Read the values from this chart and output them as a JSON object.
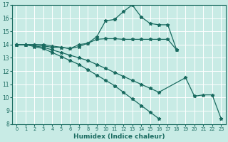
{
  "xlabel": "Humidex (Indice chaleur)",
  "bg_color": "#c8ebe5",
  "line_color": "#1a6b60",
  "xmin": -0.5,
  "xmax": 23.5,
  "ymin": 8,
  "ymax": 17,
  "line1_x": [
    0,
    1,
    2,
    3,
    4,
    5,
    6,
    7,
    8,
    9,
    10,
    11,
    12,
    13,
    14,
    15,
    16,
    17,
    18
  ],
  "line1_y": [
    14,
    14,
    14,
    14,
    13.9,
    13.8,
    13.7,
    14.0,
    14.1,
    14.4,
    14.45,
    14.45,
    14.4,
    14.4,
    14.4,
    14.4,
    14.4,
    14.4,
    13.6
  ],
  "line2_x": [
    0,
    1,
    2,
    3,
    4,
    5,
    6,
    7,
    8,
    9,
    10,
    11,
    12,
    13,
    14,
    15,
    16,
    17,
    18
  ],
  "line2_y": [
    14,
    14,
    14,
    13.9,
    13.8,
    13.8,
    13.7,
    13.85,
    14.1,
    14.6,
    15.8,
    15.9,
    16.5,
    17.0,
    16.1,
    15.6,
    15.5,
    15.5,
    13.6
  ],
  "line3_x": [
    0,
    1,
    2,
    3,
    4,
    5,
    6,
    7,
    8,
    9,
    10,
    11,
    12,
    13,
    14,
    15,
    16,
    19,
    20,
    21,
    22,
    23
  ],
  "line3_y": [
    14,
    14,
    13.9,
    13.8,
    13.6,
    13.4,
    13.2,
    13.0,
    12.8,
    12.5,
    12.2,
    11.9,
    11.6,
    11.3,
    11.0,
    10.7,
    10.4,
    11.5,
    10.1,
    10.2,
    10.2,
    8.4
  ],
  "line4_x": [
    0,
    1,
    2,
    3,
    4,
    5,
    6,
    7,
    8,
    9,
    10,
    11,
    12,
    13,
    14,
    15,
    16
  ],
  "line4_y": [
    14,
    14,
    13.85,
    13.7,
    13.4,
    13.1,
    12.8,
    12.5,
    12.1,
    11.7,
    11.3,
    10.9,
    10.4,
    9.9,
    9.4,
    8.9,
    8.4
  ]
}
